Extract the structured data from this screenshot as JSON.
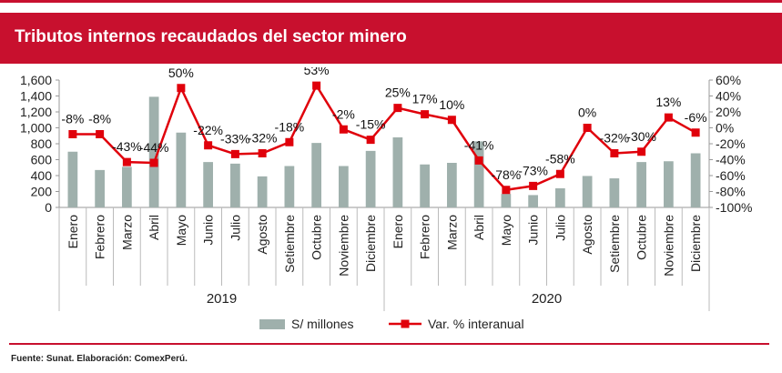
{
  "title": "Tributos internos recaudados del sector minero",
  "source": "Fuente: Sunat. Elaboración: ComexPerú.",
  "colors": {
    "brand": "#c8102e",
    "bar": "#9fb0ac",
    "line": "#e0000b"
  },
  "chart_data": {
    "type": "bar",
    "categories": [
      "Enero",
      "Febrero",
      "Marzo",
      "Abril",
      "Mayo",
      "Junio",
      "Julio",
      "Agosto",
      "Setiembre",
      "Octubre",
      "Noviembre",
      "Diciembre",
      "Enero",
      "Febrero",
      "Marzo",
      "Abril",
      "Mayo",
      "Junio",
      "Julio",
      "Agosto",
      "Setiembre",
      "Octubre",
      "Noviembre",
      "Diciembre"
    ],
    "year_groups": [
      {
        "label": "2019",
        "count": 12
      },
      {
        "label": "2020",
        "count": 12
      }
    ],
    "series": [
      {
        "name": "S/ millones",
        "type": "bar",
        "axis": "left",
        "values": [
          700,
          470,
          510,
          1390,
          940,
          570,
          550,
          390,
          520,
          810,
          520,
          710,
          880,
          540,
          560,
          830,
          170,
          155,
          240,
          395,
          365,
          570,
          580,
          680
        ]
      },
      {
        "name": "Var. % interanual",
        "type": "line",
        "axis": "right",
        "values": [
          -8,
          -8,
          -43,
          -44,
          50,
          -22,
          -33,
          -32,
          -18,
          53,
          -2,
          -15,
          25,
          17,
          10,
          -41,
          -78,
          -73,
          -58,
          0,
          -32,
          -30,
          13,
          -6
        ],
        "labels": [
          "-8%",
          "-8%",
          "-43%",
          "-44%",
          "50%",
          "-22%",
          "-33%",
          "-32%",
          "-18%",
          "53%",
          "-2%",
          "-15%",
          "25%",
          "17%",
          "10%",
          "-41%",
          "-78%",
          "-73%",
          "-58%",
          "0%",
          "-32%",
          "-30%",
          "13%",
          "-6%"
        ]
      }
    ],
    "y_left": {
      "min": 0,
      "max": 1600,
      "ticks": [
        "0",
        "200",
        "400",
        "600",
        "800",
        "1,000",
        "1,200",
        "1,400",
        "1,600"
      ]
    },
    "y_right": {
      "min": -100,
      "max": 60,
      "ticks": [
        "-100%",
        "-80%",
        "-60%",
        "-40%",
        "-20%",
        "0%",
        "20%",
        "40%",
        "60%"
      ]
    },
    "grid": false,
    "legend_position": "bottom"
  }
}
